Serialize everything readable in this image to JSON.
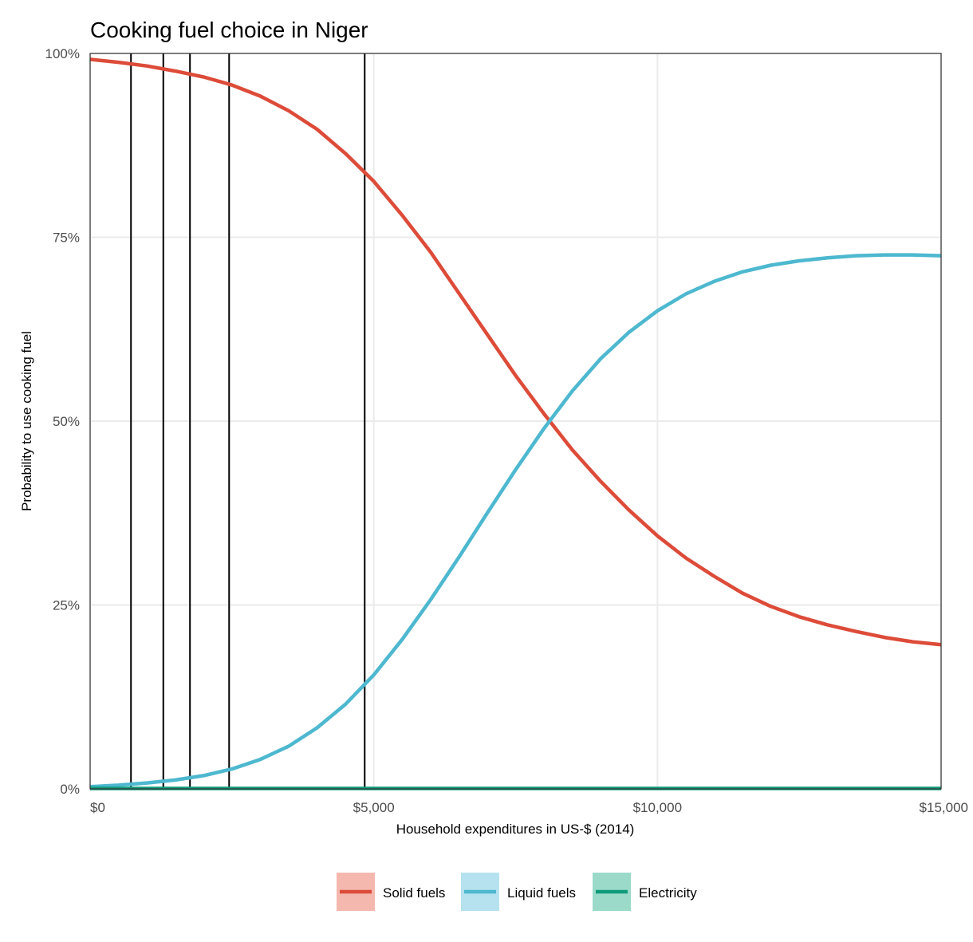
{
  "chart_data": {
    "type": "line",
    "title": "Cooking fuel choice in Niger",
    "xlabel": "Household expenditures in US-$ (2014)",
    "ylabel": "Probability to use cooking fuel",
    "xlim": [
      0,
      15000
    ],
    "ylim": [
      0,
      1
    ],
    "x_ticks": [
      {
        "value": 0,
        "label": "$0"
      },
      {
        "value": 5000,
        "label": "$5,000"
      },
      {
        "value": 10000,
        "label": "$10,000"
      },
      {
        "value": 15000,
        "label": "$15,000"
      }
    ],
    "y_ticks": [
      {
        "value": 0,
        "label": "0%"
      },
      {
        "value": 0.25,
        "label": "25%"
      },
      {
        "value": 0.5,
        "label": "50%"
      },
      {
        "value": 0.75,
        "label": "75%"
      },
      {
        "value": 1,
        "label": "100%"
      }
    ],
    "grid": true,
    "legend_position": "bottom",
    "vertical_lines": [
      720,
      1290,
      1760,
      2450,
      4840
    ],
    "series": [
      {
        "name": "Solid fuels",
        "color": "#dd4b39",
        "legend_fill": "#f4b8ae",
        "x": [
          0,
          500,
          1000,
          1500,
          2000,
          2500,
          3000,
          3500,
          4000,
          4500,
          5000,
          5500,
          6000,
          6500,
          7000,
          7500,
          8000,
          8500,
          9000,
          9500,
          10000,
          10500,
          11000,
          11500,
          12000,
          12500,
          13000,
          13500,
          14000,
          14500,
          15000
        ],
        "y": [
          0.992,
          0.988,
          0.983,
          0.976,
          0.968,
          0.957,
          0.942,
          0.922,
          0.897,
          0.864,
          0.826,
          0.78,
          0.73,
          0.674,
          0.618,
          0.562,
          0.51,
          0.461,
          0.418,
          0.379,
          0.344,
          0.314,
          0.289,
          0.266,
          0.248,
          0.234,
          0.223,
          0.214,
          0.206,
          0.2,
          0.196
        ]
      },
      {
        "name": "Liquid fuels",
        "color": "#4db8cf",
        "legend_fill": "#b5e2ee",
        "x": [
          0,
          500,
          1000,
          1500,
          2000,
          2500,
          3000,
          3500,
          4000,
          4500,
          5000,
          5500,
          6000,
          6500,
          7000,
          7500,
          8000,
          8500,
          9000,
          9500,
          10000,
          10500,
          11000,
          11500,
          12000,
          12500,
          13000,
          13500,
          14000,
          14500,
          15000
        ],
        "y": [
          0.003,
          0.005,
          0.008,
          0.012,
          0.018,
          0.027,
          0.04,
          0.058,
          0.083,
          0.115,
          0.155,
          0.203,
          0.257,
          0.315,
          0.375,
          0.434,
          0.49,
          0.541,
          0.585,
          0.621,
          0.65,
          0.673,
          0.69,
          0.703,
          0.712,
          0.718,
          0.722,
          0.725,
          0.726,
          0.726,
          0.725
        ]
      },
      {
        "name": "Electricity",
        "color": "#0f9b7b",
        "legend_fill": "#9bdac9",
        "x": [
          0,
          15000
        ],
        "y": [
          0.0005,
          0.0005
        ]
      }
    ]
  }
}
